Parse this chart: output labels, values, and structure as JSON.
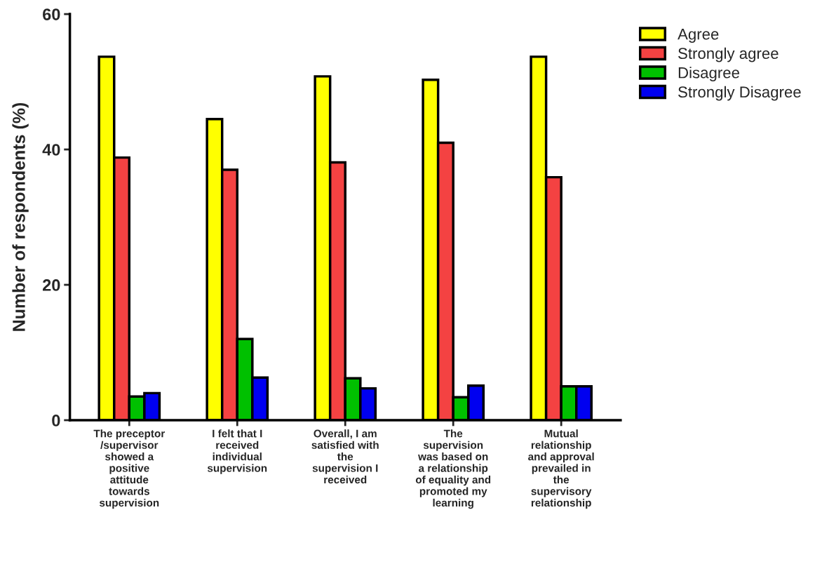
{
  "chart_data": {
    "type": "bar",
    "ylabel": "Number of respondents (%)",
    "categories": [
      "The preceptor\n/supervisor\nshowed a\npositive\nattitude\ntowards\nsupervision",
      "I felt that I\nreceived\nindividual\nsupervision",
      "Overall, I am\nsatisfied with\nthe\nsupervision I\nreceived",
      "The\nsupervision\nwas based on\na relationship\nof equality and\npromoted my\nlearning",
      "Mutual\nrelationship\nand approval\nprevailed in\nthe\nsupervisory\nrelationship"
    ],
    "series": [
      {
        "name": "Agree",
        "color": "#ffff00",
        "values": [
          53.7,
          44.5,
          50.8,
          50.3,
          53.7
        ]
      },
      {
        "name": "Strongly agree",
        "color": "#f44242",
        "values": [
          38.8,
          37.0,
          38.1,
          41.0,
          35.9
        ]
      },
      {
        "name": "Disagree",
        "color": "#00c000",
        "values": [
          3.5,
          12.0,
          6.2,
          3.4,
          5.0
        ]
      },
      {
        "name": "Strongly Disagree",
        "color": "#0000f0",
        "values": [
          4.0,
          6.3,
          4.7,
          5.1,
          5.0
        ]
      }
    ],
    "ylim": [
      0,
      60
    ],
    "yticks": [
      0,
      20,
      40,
      60
    ],
    "grid": false,
    "legend": "top right"
  }
}
